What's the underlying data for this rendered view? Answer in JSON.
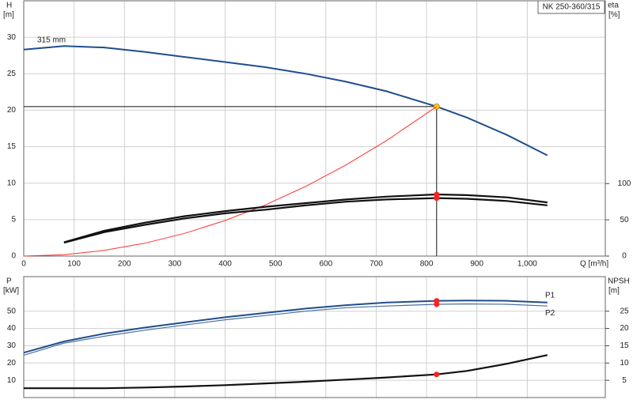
{
  "chart_data": [
    {
      "type": "line",
      "title": "NK 250-360/315",
      "ylabel": "H",
      "yunit": "[m]",
      "y2label": "eta",
      "y2unit": "[%]",
      "xlabel": "Q [m³/h]",
      "xlim": [
        0,
        1155
      ],
      "xticks": [
        0,
        100,
        200,
        300,
        400,
        500,
        600,
        700,
        800,
        900,
        {
          "value": 1000,
          "label": "1,000"
        }
      ],
      "ylim": [
        0,
        35
      ],
      "yticks": [
        0,
        5,
        10,
        15,
        20,
        25,
        30
      ],
      "y2lim": [
        0,
        352
      ],
      "y2ticks": [
        0,
        50,
        100
      ],
      "grid": true,
      "x": [
        0,
        80,
        160,
        240,
        320,
        400,
        480,
        560,
        640,
        720,
        820,
        880,
        960,
        1040
      ],
      "series": [
        {
          "name": "315 mm",
          "color": "#1f4e8c",
          "values": [
            28.3,
            28.8,
            28.6,
            28.0,
            27.3,
            26.6,
            25.9,
            25.0,
            23.9,
            22.6,
            20.5,
            19.0,
            16.6,
            13.8
          ]
        },
        {
          "color": "#ff3030",
          "values": [
            0,
            0.2,
            0.78,
            1.76,
            3.12,
            4.88,
            7.02,
            9.56,
            12.49,
            15.81,
            20.5,
            null,
            null,
            null
          ]
        },
        {
          "color": "#111111",
          "axis": "y2",
          "values": [
            null,
            19,
            35,
            46,
            55,
            62,
            68,
            73,
            78,
            82,
            85,
            84,
            81,
            74
          ]
        },
        {
          "color": "#111111",
          "axis": "y2",
          "values": [
            null,
            18.5,
            33,
            43,
            52,
            59,
            64,
            70,
            75,
            78,
            80,
            79,
            76,
            70
          ]
        }
      ]
    },
    {
      "type": "line",
      "ylabel": "P",
      "yunit": "[kW]",
      "y2label": "NPSH",
      "y2unit": "[m]",
      "xlim": [
        0,
        1155
      ],
      "xticks": [
        0,
        100,
        200,
        300,
        400,
        500,
        600,
        700,
        800,
        900,
        1000
      ],
      "ylim": [
        0,
        70
      ],
      "yticks": [
        10,
        20,
        30,
        40,
        50
      ],
      "y2lim": [
        0,
        35
      ],
      "y2ticks": [
        5,
        10,
        15,
        20,
        25
      ],
      "grid": true,
      "x": [
        0,
        80,
        160,
        240,
        320,
        400,
        480,
        560,
        640,
        720,
        820,
        880,
        960,
        1040
      ],
      "series": [
        {
          "name": "P1",
          "color": "#1f4e8c",
          "values": [
            26,
            32.5,
            37,
            40.5,
            43.5,
            46.5,
            49,
            51.5,
            53.5,
            55,
            56,
            56.2,
            56,
            55
          ]
        },
        {
          "name": "P2",
          "color": "#4a6f9e",
          "values": [
            24.5,
            31.5,
            35.5,
            39,
            42,
            45,
            47.5,
            50,
            52,
            53,
            54,
            54.2,
            54,
            53
          ]
        },
        {
          "color": "#111111",
          "axis": "y2",
          "values": [
            2.7,
            2.7,
            2.7,
            2.9,
            3.2,
            3.6,
            4.1,
            4.6,
            5.2,
            5.8,
            6.7,
            7.7,
            9.8,
            12.3
          ]
        }
      ]
    }
  ]
}
